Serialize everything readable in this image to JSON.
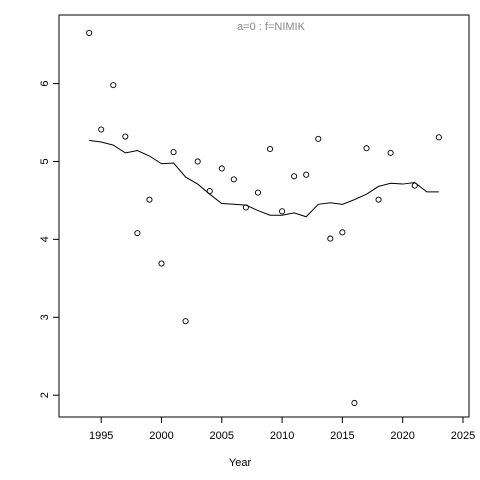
{
  "chart_data": {
    "type": "scatter",
    "title": "a=0  :  f=NIMIK",
    "xlabel": "Year",
    "ylabel": "",
    "xlim": [
      1991.5,
      2025.5
    ],
    "ylim": [
      1.72,
      6.88
    ],
    "x_ticks": [
      1995,
      2000,
      2005,
      2010,
      2015,
      2020,
      2025
    ],
    "y_ticks": [
      2,
      3,
      4,
      5,
      6
    ],
    "grid": false,
    "legend": "none",
    "series": [
      {
        "kind": "points",
        "marker": "open-circle",
        "x": [
          1994,
          1995,
          1996,
          1997,
          1998,
          1999,
          2000,
          2001,
          2002,
          2003,
          2004,
          2005,
          2006,
          2007,
          2008,
          2009,
          2010,
          2011,
          2012,
          2013,
          2014,
          2015,
          2016,
          2017,
          2018,
          2019,
          2021,
          2023
        ],
        "y": [
          6.65,
          5.41,
          5.98,
          5.32,
          4.08,
          4.51,
          3.69,
          5.12,
          2.95,
          5.0,
          4.62,
          4.91,
          4.77,
          4.41,
          4.6,
          5.16,
          4.36,
          4.81,
          4.83,
          5.29,
          4.01,
          4.09,
          1.9,
          5.17,
          4.51,
          5.11,
          4.69,
          5.31
        ]
      },
      {
        "kind": "line",
        "x": [
          1994,
          1995,
          1996,
          1997,
          1998,
          1999,
          2000,
          2001,
          2002,
          2003,
          2004,
          2005,
          2006,
          2007,
          2008,
          2009,
          2010,
          2011,
          2012,
          2013,
          2014,
          2015,
          2016,
          2017,
          2018,
          2019,
          2020,
          2021,
          2022,
          2023
        ],
        "y": [
          5.27,
          5.25,
          5.21,
          5.11,
          5.14,
          5.07,
          4.97,
          4.98,
          4.8,
          4.71,
          4.58,
          4.46,
          4.45,
          4.44,
          4.37,
          4.31,
          4.31,
          4.34,
          4.29,
          4.45,
          4.47,
          4.45,
          4.51,
          4.58,
          4.68,
          4.72,
          4.71,
          4.73,
          4.61,
          4.61
        ]
      }
    ]
  }
}
